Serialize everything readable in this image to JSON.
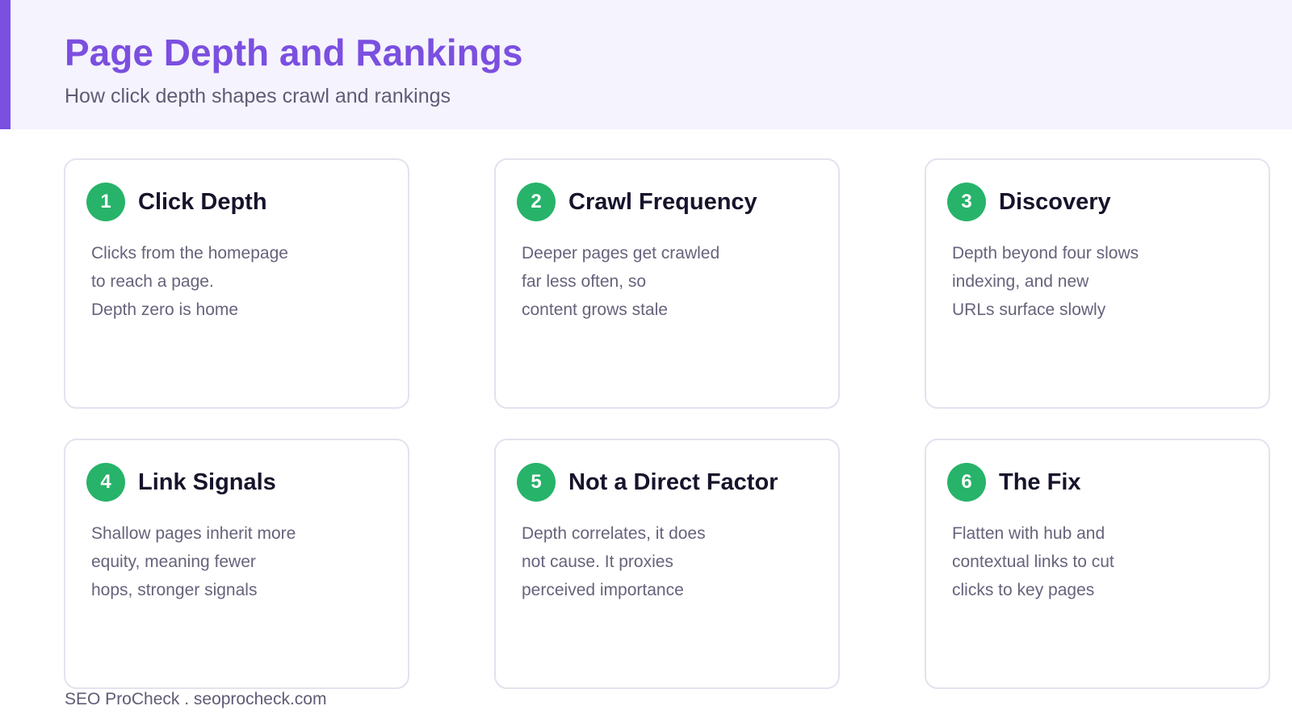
{
  "header": {
    "title": "Page Depth and Rankings",
    "subtitle": "How click depth shapes crawl and rankings"
  },
  "cards": [
    {
      "number": "1",
      "title": "Click Depth",
      "lines": [
        "Clicks from the homepage",
        "to reach a page.",
        "Depth zero is home"
      ]
    },
    {
      "number": "2",
      "title": "Crawl Frequency",
      "lines": [
        "Deeper pages get crawled",
        "far less often, so",
        "content grows stale"
      ]
    },
    {
      "number": "3",
      "title": "Discovery",
      "lines": [
        "Depth beyond four slows",
        "indexing, and new",
        "URLs surface slowly"
      ]
    },
    {
      "number": "4",
      "title": "Link Signals",
      "lines": [
        "Shallow pages inherit more",
        "equity, meaning fewer",
        "hops, stronger signals"
      ]
    },
    {
      "number": "5",
      "title": "Not a Direct Factor",
      "lines": [
        "Depth correlates, it does",
        "not cause. It proxies",
        "perceived importance"
      ]
    },
    {
      "number": "6",
      "title": "The Fix",
      "lines": [
        "Flatten with hub and",
        "contextual links to cut",
        "clicks to key pages"
      ]
    }
  ],
  "footer": {
    "text": "SEO ProCheck . seoprocheck.com"
  },
  "colors": {
    "accent": "#7b4fe0",
    "badge": "#27b36a",
    "header_bg": "#f5f3fd"
  }
}
